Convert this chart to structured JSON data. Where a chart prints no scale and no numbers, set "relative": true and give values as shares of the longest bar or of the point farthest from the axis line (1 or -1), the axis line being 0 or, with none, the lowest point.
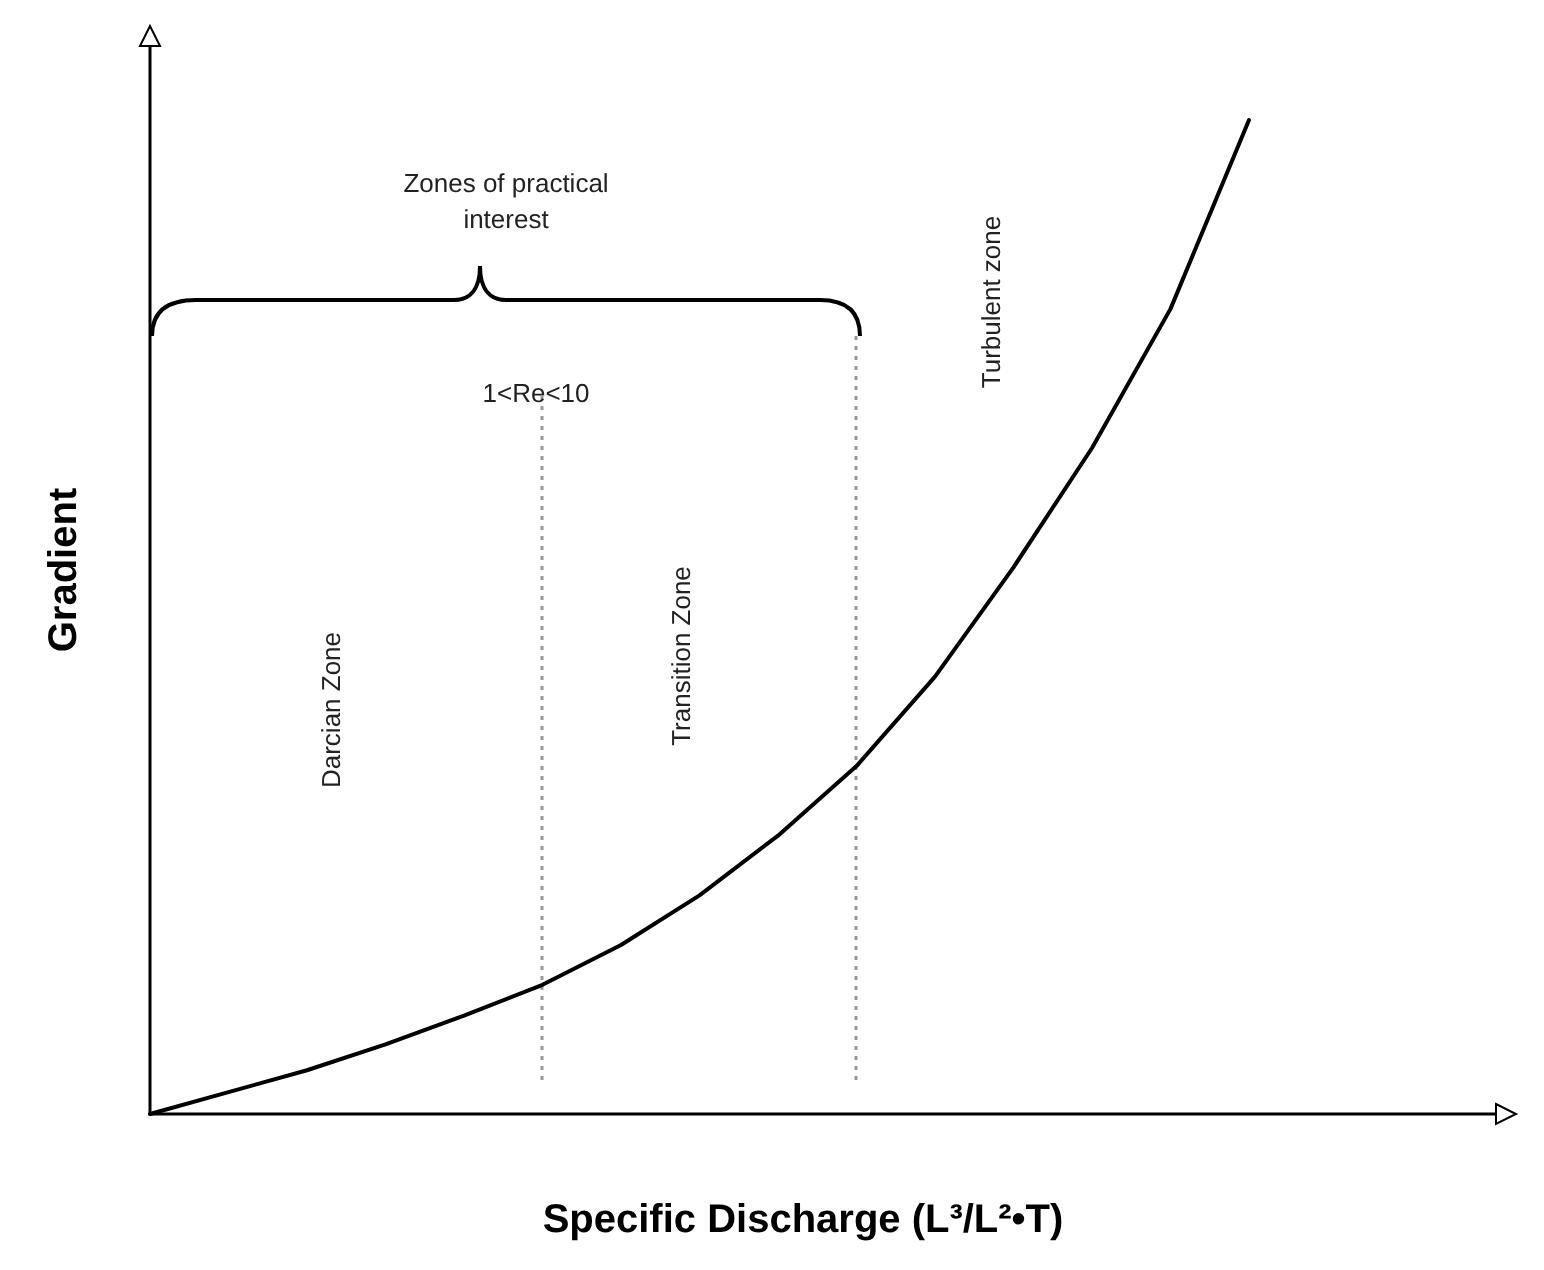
{
  "chart_data": {
    "type": "line",
    "relative": true,
    "xlabel": "Specific Discharge (L³/L²•T)",
    "ylabel": "Gradient",
    "categories": [
      null,
      null,
      null,
      null,
      null,
      null,
      null,
      null,
      null,
      null,
      null,
      null,
      null,
      null,
      null
    ],
    "series": [
      {
        "color": "#000000",
        "values": [
          0,
          0.022,
          0.044,
          0.07,
          0.099,
          0.13,
          0.17,
          0.22,
          0.28,
          0.35,
          0.44,
          0.55,
          0.67,
          0.81,
          1
        ]
      }
    ],
    "annotations": [
      "Zones of practical interest",
      "1<Re<10",
      "Darcian Zone",
      "Transition Zone",
      "Turbulent zone"
    ],
    "grid": false,
    "line_style": "solid"
  }
}
